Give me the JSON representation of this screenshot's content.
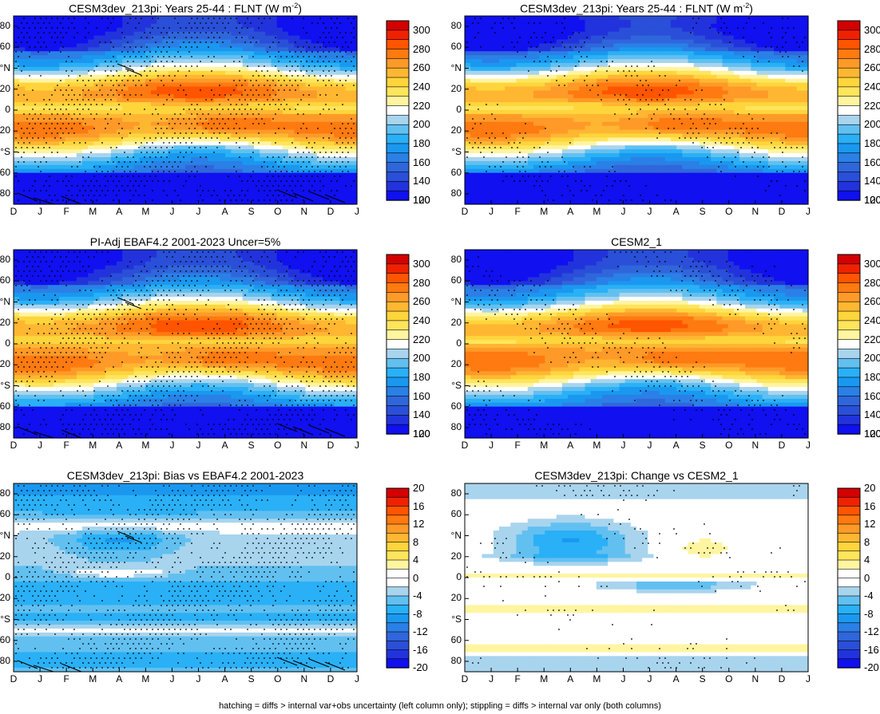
{
  "footnote": "hatching = diffs > internal var+obs uncertainty (left column only); stippling = diffs > internal var only (both columns)",
  "colorbars": {
    "abs": {
      "ticks": [
        "300",
        "280",
        "260",
        "240",
        "220",
        "200",
        "180",
        "160",
        "140",
        "120",
        "100"
      ],
      "colors": [
        "#d40000",
        "#ee2200",
        "#ff5500",
        "#ff7a10",
        "#ff9a28",
        "#ffb732",
        "#ffd53c",
        "#ffe55c",
        "#fff5a0",
        "#ffffff",
        "#a8d4ee",
        "#62c0f0",
        "#2ab0f6",
        "#1a98f0",
        "#2a80e6",
        "#3066dc",
        "#2a4fd8",
        "#2233dc",
        "#1010f0"
      ]
    },
    "diff": {
      "ticks": [
        "20",
        "16",
        "12",
        "8",
        "4",
        "0",
        "-4",
        "-8",
        "-12",
        "-16",
        "-20"
      ],
      "colors": [
        "#d40000",
        "#ee2200",
        "#ff5500",
        "#ff7a10",
        "#ff9a28",
        "#ffb732",
        "#ffd53c",
        "#ffe55c",
        "#fff5a0",
        "#ffffff",
        "#ffffff",
        "#a8d4ee",
        "#62c0f0",
        "#2ab0f6",
        "#1a98f0",
        "#2a80e6",
        "#3066dc",
        "#2a4fd8",
        "#2233dc",
        "#1010f0"
      ]
    }
  },
  "y_tick_labels": [
    "80",
    "60",
    "°N",
    "20",
    "0",
    "20",
    "°S",
    "60",
    "80"
  ],
  "x_tick_labels": [
    "D",
    "J",
    "F",
    "M",
    "A",
    "M",
    "J",
    "J",
    "A",
    "S",
    "O",
    "N",
    "D",
    "J"
  ],
  "panels": [
    {
      "title_main": "CESM3dev_213pi: Years 25-44 : FLNT (W m",
      "title_sup": "-2",
      "title_end": ")",
      "field": "abs",
      "colorbar": "abs",
      "hatch": true,
      "stipple": "dense"
    },
    {
      "title_main": "CESM3dev_213pi: Years 25-44 : FLNT (W m",
      "title_sup": "-2",
      "title_end": ")",
      "field": "abs2",
      "colorbar": "abs",
      "hatch": false,
      "stipple": "sparse"
    },
    {
      "title_main": "PI-Adj EBAF4.2 2001-2023 Uncer=5%",
      "title_sup": "",
      "title_end": "",
      "field": "obs",
      "colorbar": "abs",
      "hatch": true,
      "stipple": "dense"
    },
    {
      "title_main": "CESM2_1",
      "title_sup": "",
      "title_end": "",
      "field": "cesm2",
      "colorbar": "abs",
      "hatch": false,
      "stipple": "sparse"
    },
    {
      "title_main": "CESM3dev_213pi: Bias vs EBAF4.2 2001-2023",
      "title_sup": "",
      "title_end": "",
      "field": "bias",
      "colorbar": "diff",
      "hatch": true,
      "stipple": "dense"
    },
    {
      "title_main": "CESM3dev_213pi: Change vs CESM2_1",
      "title_sup": "",
      "title_end": "",
      "field": "change",
      "colorbar": "diff",
      "hatch": false,
      "stipple": "sparse"
    }
  ],
  "chart_data": {
    "type": "heatmap",
    "variable": "FLNT",
    "units": "W m-2",
    "x_categories": [
      "D",
      "J",
      "F",
      "M",
      "A",
      "M",
      "J",
      "J",
      "A",
      "S",
      "O",
      "N",
      "D",
      "J"
    ],
    "y_ticks": [
      "80",
      "60",
      "°N",
      "20",
      "0",
      "20",
      "°S",
      "60",
      "80"
    ],
    "ylim": [
      -90,
      90
    ],
    "abs_colorbar_range": [
      100,
      300
    ],
    "diff_colorbar_range": [
      -20,
      20
    ]
  }
}
